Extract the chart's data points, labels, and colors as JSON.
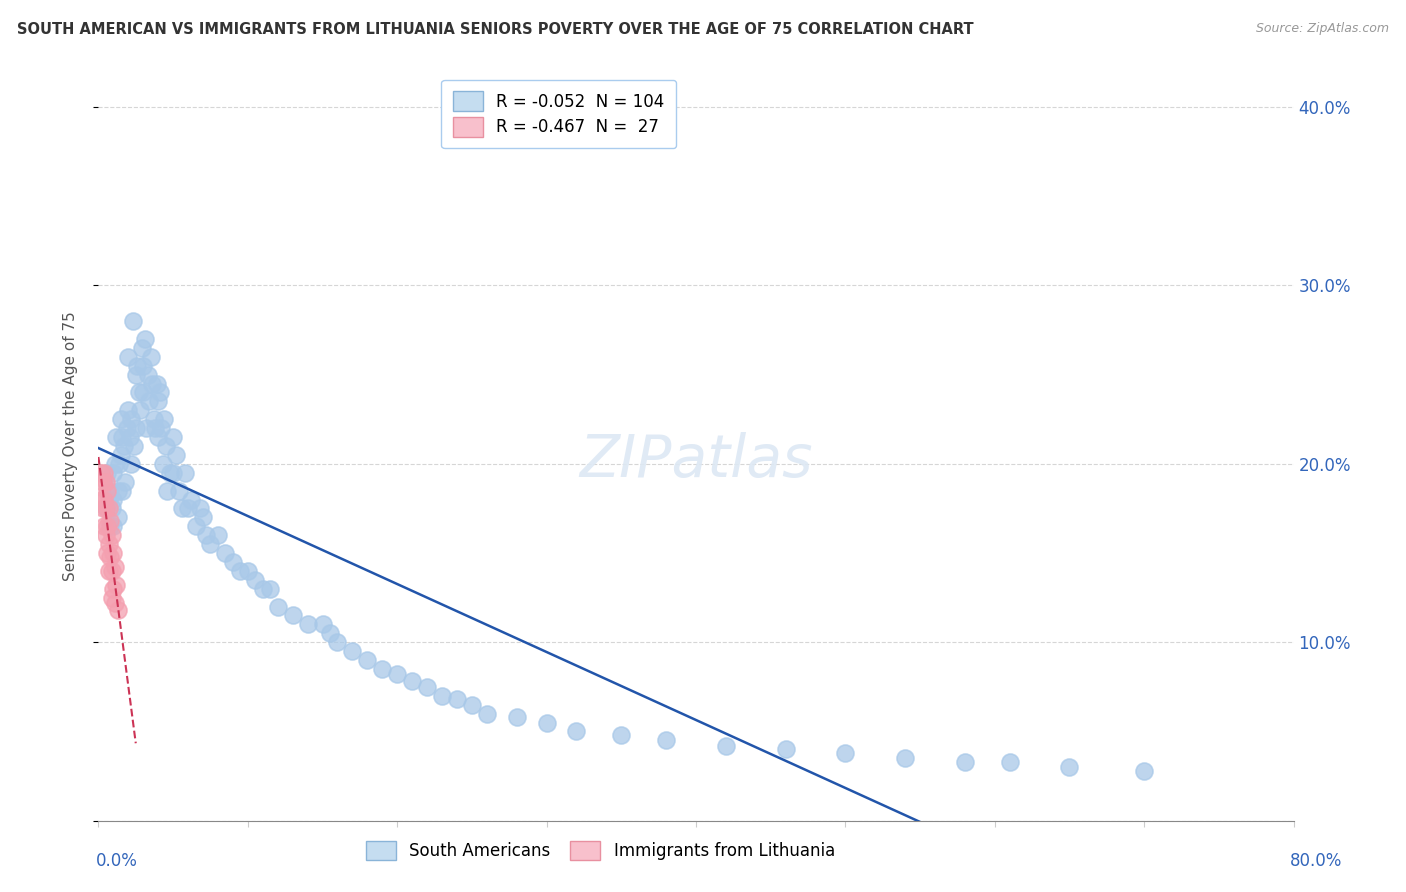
{
  "title": "SOUTH AMERICAN VS IMMIGRANTS FROM LITHUANIA SENIORS POVERTY OVER THE AGE OF 75 CORRELATION CHART",
  "source": "Source: ZipAtlas.com",
  "ylabel": "Seniors Poverty Over the Age of 75",
  "ytick_values": [
    0.0,
    0.1,
    0.2,
    0.3,
    0.4
  ],
  "ytick_labels": [
    "",
    "10.0%",
    "20.0%",
    "30.0%",
    "40.0%"
  ],
  "xlim": [
    0.0,
    0.8
  ],
  "ylim": [
    0.0,
    0.42
  ],
  "watermark": "ZIPatlas",
  "blue_color": "#a8c8e8",
  "pink_color": "#f4a0b0",
  "blue_line_color": "#2255aa",
  "pink_line_color": "#cc3355",
  "south_american_x": [
    0.005,
    0.006,
    0.007,
    0.008,
    0.008,
    0.009,
    0.01,
    0.01,
    0.01,
    0.011,
    0.012,
    0.013,
    0.013,
    0.014,
    0.015,
    0.015,
    0.016,
    0.016,
    0.017,
    0.018,
    0.019,
    0.02,
    0.02,
    0.021,
    0.022,
    0.022,
    0.023,
    0.024,
    0.025,
    0.025,
    0.026,
    0.027,
    0.028,
    0.029,
    0.03,
    0.03,
    0.031,
    0.032,
    0.033,
    0.034,
    0.035,
    0.036,
    0.037,
    0.038,
    0.039,
    0.04,
    0.04,
    0.041,
    0.042,
    0.043,
    0.044,
    0.045,
    0.046,
    0.048,
    0.05,
    0.05,
    0.052,
    0.054,
    0.056,
    0.058,
    0.06,
    0.062,
    0.065,
    0.068,
    0.07,
    0.072,
    0.075,
    0.08,
    0.085,
    0.09,
    0.095,
    0.1,
    0.105,
    0.11,
    0.115,
    0.12,
    0.13,
    0.14,
    0.15,
    0.155,
    0.16,
    0.17,
    0.18,
    0.19,
    0.2,
    0.21,
    0.22,
    0.23,
    0.24,
    0.25,
    0.26,
    0.28,
    0.3,
    0.32,
    0.35,
    0.38,
    0.42,
    0.46,
    0.5,
    0.54,
    0.58,
    0.61,
    0.65,
    0.7
  ],
  "south_american_y": [
    0.175,
    0.195,
    0.18,
    0.165,
    0.185,
    0.175,
    0.195,
    0.18,
    0.165,
    0.2,
    0.215,
    0.185,
    0.17,
    0.2,
    0.225,
    0.205,
    0.215,
    0.185,
    0.21,
    0.19,
    0.22,
    0.26,
    0.23,
    0.215,
    0.225,
    0.2,
    0.28,
    0.21,
    0.25,
    0.22,
    0.255,
    0.24,
    0.23,
    0.265,
    0.255,
    0.24,
    0.27,
    0.22,
    0.25,
    0.235,
    0.26,
    0.245,
    0.225,
    0.22,
    0.245,
    0.235,
    0.215,
    0.24,
    0.22,
    0.2,
    0.225,
    0.21,
    0.185,
    0.195,
    0.215,
    0.195,
    0.205,
    0.185,
    0.175,
    0.195,
    0.175,
    0.18,
    0.165,
    0.175,
    0.17,
    0.16,
    0.155,
    0.16,
    0.15,
    0.145,
    0.14,
    0.14,
    0.135,
    0.13,
    0.13,
    0.12,
    0.115,
    0.11,
    0.11,
    0.105,
    0.1,
    0.095,
    0.09,
    0.085,
    0.082,
    0.078,
    0.075,
    0.07,
    0.068,
    0.065,
    0.06,
    0.058,
    0.055,
    0.05,
    0.048,
    0.045,
    0.042,
    0.04,
    0.038,
    0.035,
    0.033,
    0.033,
    0.03,
    0.028
  ],
  "lithuania_x": [
    0.002,
    0.002,
    0.003,
    0.003,
    0.004,
    0.004,
    0.004,
    0.005,
    0.005,
    0.005,
    0.006,
    0.006,
    0.006,
    0.007,
    0.007,
    0.007,
    0.008,
    0.008,
    0.009,
    0.009,
    0.009,
    0.01,
    0.01,
    0.011,
    0.011,
    0.012,
    0.013
  ],
  "lithuania_y": [
    0.195,
    0.18,
    0.19,
    0.175,
    0.195,
    0.18,
    0.165,
    0.19,
    0.175,
    0.16,
    0.185,
    0.165,
    0.15,
    0.175,
    0.155,
    0.14,
    0.168,
    0.148,
    0.16,
    0.14,
    0.125,
    0.15,
    0.13,
    0.142,
    0.122,
    0.132,
    0.118
  ]
}
